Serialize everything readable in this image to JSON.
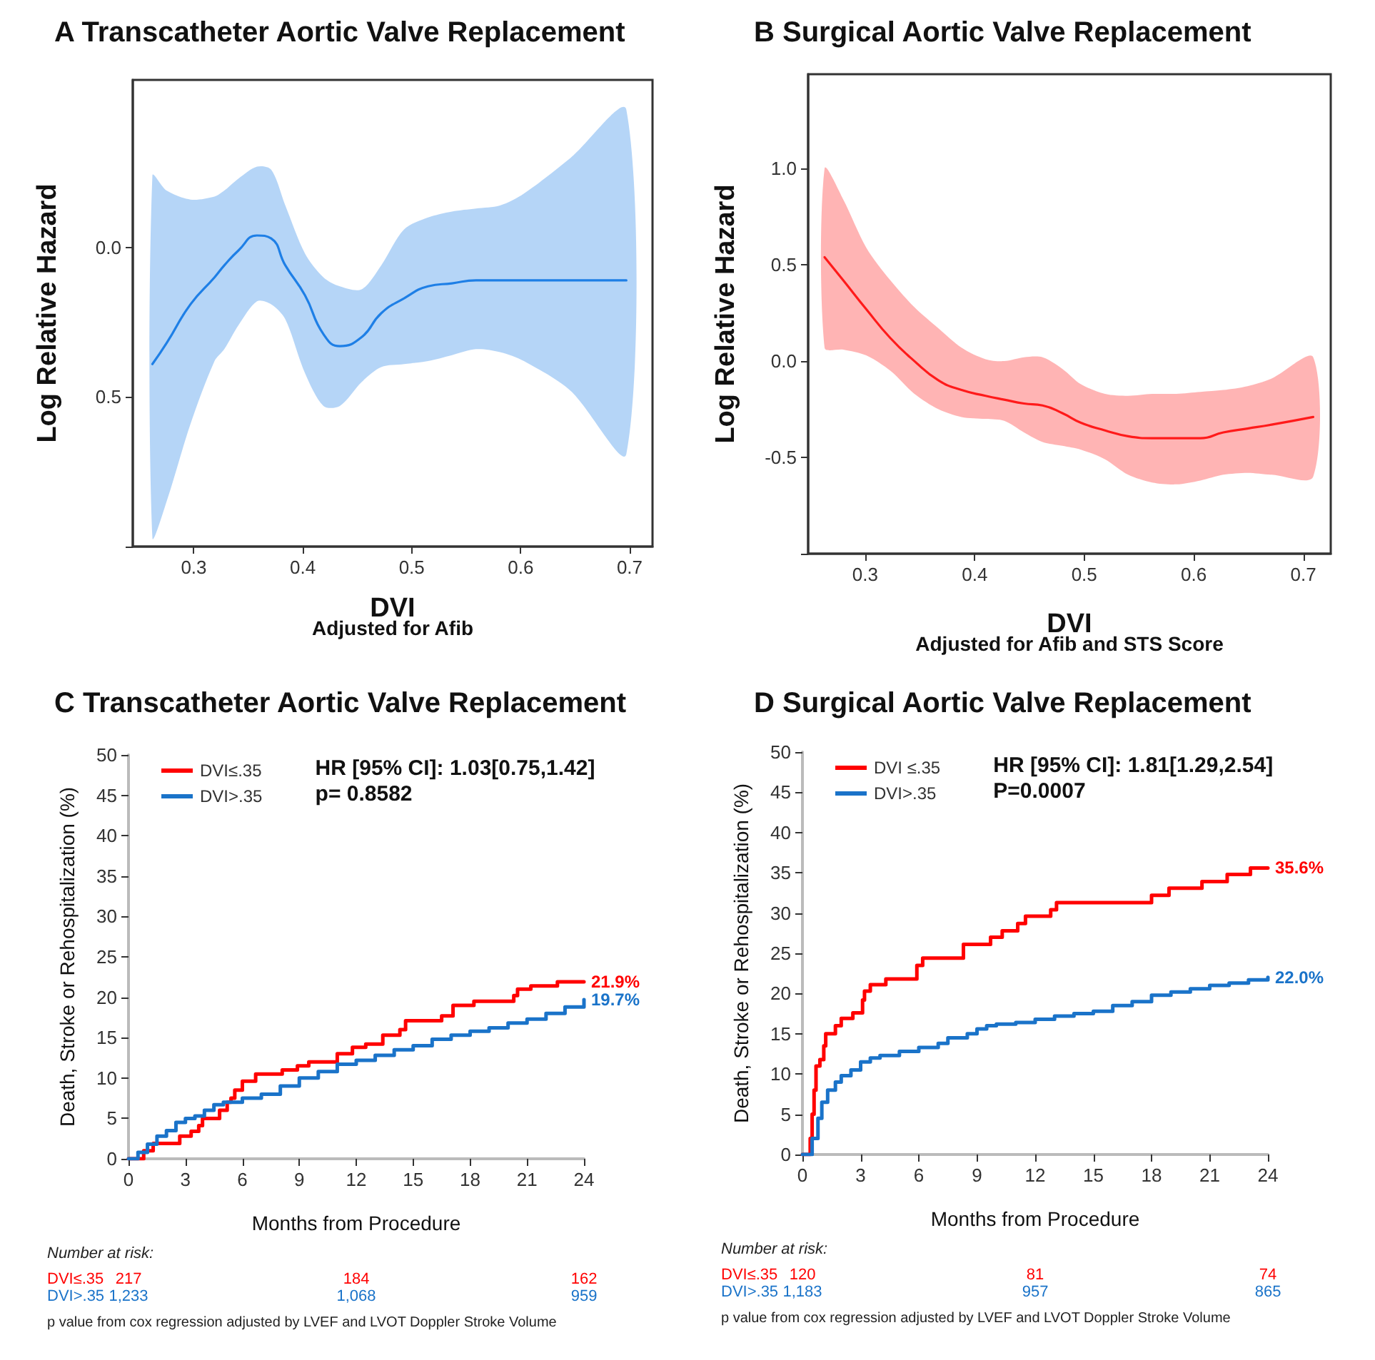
{
  "chart_data": [
    {
      "type": "line",
      "title": "A Transcatheter Aortic Valve Replacement",
      "xlabel": "DVI",
      "ylabel": "Log Relative Hazard",
      "annotations": [
        "Adjusted for Afib"
      ],
      "xlim": [
        0.244,
        0.721
      ],
      "xticks": [
        0.3,
        0.4,
        0.5,
        0.6,
        0.7
      ],
      "ylim": [
        1.0,
        -0.56
      ],
      "yticks": [
        {
          "value": 0,
          "label": "0.0"
        },
        0.5,
        {
          "value": 1,
          "label": null
        }
      ],
      "grid": false,
      "legend": false,
      "marker": "none",
      "line_style": "solid",
      "series": [
        {
          "color": "#1e7fe6",
          "x": [
            0.262,
            0.275,
            0.297,
            0.319,
            0.328,
            0.341,
            0.358,
            0.371,
            0.384,
            0.402,
            0.419,
            0.434,
            0.454,
            0.472,
            0.493,
            0.515,
            0.537,
            0.559,
            0.581,
            0.603,
            0.646,
            0.697
          ],
          "values": [
            0.39,
            0.32,
            0.19,
            0.1,
            0.06,
            0.01,
            -0.04,
            -0.03,
            0.06,
            0.16,
            0.29,
            0.33,
            0.3,
            0.22,
            0.17,
            0.13,
            0.12,
            0.11,
            0.11,
            0.11,
            0.11,
            0.11
          ],
          "lower": [
            -0.24,
            -0.19,
            -0.16,
            -0.17,
            -0.19,
            -0.23,
            -0.27,
            -0.26,
            -0.14,
            0.02,
            0.1,
            0.13,
            0.14,
            0.06,
            -0.06,
            -0.1,
            -0.12,
            -0.13,
            -0.14,
            -0.18,
            -0.3,
            -0.46
          ],
          "upper": [
            0.97,
            0.85,
            0.59,
            0.38,
            0.34,
            0.26,
            0.18,
            0.19,
            0.24,
            0.42,
            0.53,
            0.53,
            0.45,
            0.4,
            0.39,
            0.38,
            0.36,
            0.34,
            0.35,
            0.38,
            0.48,
            0.69
          ]
        }
      ]
    },
    {
      "type": "line",
      "title": "B Surgical Aortic Valve Replacement",
      "xlabel": "DVI",
      "ylabel": "Log Relative Hazard",
      "annotations": [
        "Adjusted for Afib and STS Score"
      ],
      "xlim": [
        0.248,
        0.725
      ],
      "xticks": [
        0.3,
        0.4,
        0.5,
        0.6,
        0.7
      ],
      "ylim": [
        -1.0,
        1.49
      ],
      "yticks": [
        {
          "value": -1,
          "label": null
        },
        -0.5,
        {
          "value": 0,
          "label": "0.0"
        },
        0.5,
        {
          "value": 1,
          "label": "1.0"
        }
      ],
      "grid": false,
      "legend": false,
      "marker": "none",
      "line_style": "solid",
      "series": [
        {
          "color": "#ff1a1a",
          "x": [
            0.263,
            0.28,
            0.301,
            0.323,
            0.345,
            0.367,
            0.388,
            0.41,
            0.427,
            0.445,
            0.462,
            0.48,
            0.497,
            0.519,
            0.54,
            0.562,
            0.584,
            0.606,
            0.627,
            0.649,
            0.671,
            0.709
          ],
          "values": [
            0.54,
            0.42,
            0.27,
            0.12,
            0.0,
            -0.1,
            -0.15,
            -0.18,
            -0.2,
            -0.22,
            -0.23,
            -0.27,
            -0.32,
            -0.36,
            -0.39,
            -0.4,
            -0.4,
            -0.4,
            -0.37,
            -0.35,
            -0.33,
            -0.29
          ],
          "lower": [
            0.07,
            0.06,
            0.03,
            -0.05,
            -0.17,
            -0.25,
            -0.29,
            -0.3,
            -0.31,
            -0.37,
            -0.42,
            -0.44,
            -0.46,
            -0.51,
            -0.59,
            -0.63,
            -0.64,
            -0.62,
            -0.59,
            -0.58,
            -0.59,
            -0.6
          ],
          "upper": [
            1.0,
            0.84,
            0.59,
            0.42,
            0.28,
            0.17,
            0.07,
            0.01,
            0.0,
            0.02,
            0.02,
            -0.04,
            -0.12,
            -0.17,
            -0.18,
            -0.17,
            -0.17,
            -0.16,
            -0.15,
            -0.13,
            -0.09,
            0.02
          ]
        }
      ]
    },
    {
      "type": "step",
      "title": "C Transcatheter Aortic Valve Replacement",
      "xlabel": "Months from Procedure",
      "ylabel": "Death, Stroke or Rehospitalization (%)",
      "xlim": [
        0,
        24
      ],
      "xticks": [
        0,
        3,
        6,
        9,
        12,
        15,
        18,
        21,
        24
      ],
      "ylim": [
        0,
        50
      ],
      "yticks": [
        0,
        5,
        10,
        15,
        20,
        25,
        30,
        35,
        40,
        45,
        50
      ],
      "grid": false,
      "legend": "top left",
      "marker": "none",
      "line_style": "solid",
      "annotations": [
        "HR [95% CI]: 1.03[0.75,1.42]",
        "p= 0.8582",
        "Number at risk:",
        "DVI≤.35",
        "217",
        "184",
        "162",
        "DVI>.35",
        "1,233",
        "1,068",
        "959",
        "p value from cox regression adjusted by LVEF and LVOT Doppler Stroke Volume"
      ],
      "series": [
        {
          "name": "DVI≤.35",
          "color": "#ff0000",
          "x": [
            0,
            0.3,
            0.8,
            1.3,
            2.7,
            3.3,
            3.7,
            3.9,
            4.8,
            5.2,
            5.4,
            5.6,
            6.0,
            6.7,
            8.1,
            8.9,
            9.5,
            11.0,
            11.8,
            12.5,
            13.4,
            14.3,
            14.6,
            16.5,
            17.1,
            18.2,
            20.3,
            20.5,
            21.2,
            22.6,
            24
          ],
          "values": [
            0,
            0,
            1,
            1.9,
            2.8,
            3.4,
            4.1,
            5,
            6,
            7,
            7.5,
            8.5,
            9.6,
            10.5,
            11,
            11.5,
            12,
            13,
            13.8,
            14.2,
            15.3,
            16,
            17.1,
            17.7,
            19,
            19.5,
            20.2,
            21,
            21.4,
            21.9,
            21.9
          ],
          "value_labels": [
            null,
            null,
            null,
            null,
            null,
            null,
            null,
            null,
            null,
            null,
            null,
            null,
            null,
            null,
            null,
            null,
            null,
            null,
            null,
            null,
            null,
            null,
            null,
            null,
            null,
            null,
            null,
            null,
            null,
            null,
            "21.9%"
          ]
        },
        {
          "name": "DVI>.35",
          "color": "#1a73c9",
          "x": [
            0,
            0.5,
            1,
            1.5,
            2,
            2.5,
            3,
            3.5,
            4,
            4.5,
            5,
            6,
            7,
            8,
            9,
            10,
            11,
            12,
            13,
            14,
            15,
            16,
            17,
            18,
            19,
            20,
            21,
            22,
            23,
            24
          ],
          "values": [
            0,
            0.8,
            1.8,
            2.8,
            3.5,
            4.5,
            5,
            5.3,
            6,
            6.7,
            7,
            7.5,
            8,
            9,
            10,
            10.8,
            11.7,
            12.2,
            12.8,
            13.5,
            14,
            14.8,
            15.3,
            15.8,
            16.2,
            16.8,
            17.3,
            18,
            18.8,
            19.7
          ],
          "value_labels": [
            null,
            null,
            null,
            null,
            null,
            null,
            null,
            null,
            null,
            null,
            null,
            null,
            null,
            null,
            null,
            null,
            null,
            null,
            null,
            null,
            null,
            null,
            null,
            null,
            null,
            null,
            null,
            null,
            null,
            "19.7%"
          ]
        }
      ]
    },
    {
      "type": "step",
      "title": "D Surgical Aortic Valve Replacement",
      "xlabel": "Months from Procedure",
      "ylabel": "Death, Stroke or Rehospitalization (%)",
      "xlim": [
        0,
        24
      ],
      "xticks": [
        0,
        3,
        6,
        9,
        12,
        15,
        18,
        21,
        24
      ],
      "ylim": [
        0,
        50
      ],
      "yticks": [
        0,
        5,
        10,
        15,
        20,
        25,
        30,
        35,
        40,
        45,
        50
      ],
      "grid": false,
      "legend": "top left",
      "marker": "none",
      "line_style": "solid",
      "annotations": [
        "HR [95% CI]: 1.81[1.29,2.54]",
        "P=0.0007",
        "Number at risk:",
        "DVI≤.35",
        "120",
        "81",
        "74",
        "DVI>.35",
        "1,183",
        "957",
        "865",
        "p value from cox regression adjusted by LVEF and LVOT Doppler Stroke Volume"
      ],
      "series": [
        {
          "name": "DVI ≤.35",
          "color": "#ff0000",
          "x": [
            0,
            0.3,
            0.4,
            0.5,
            0.6,
            0.7,
            0.9,
            1.1,
            1.2,
            1.7,
            2.0,
            2.6,
            3.1,
            3.2,
            3.5,
            4.3,
            5.9,
            6.2,
            8.3,
            9.7,
            10.3,
            11.1,
            11.5,
            12.8,
            13.1,
            18.0,
            18.9,
            20.6,
            21.9,
            23.1,
            24
          ],
          "values": [
            0,
            0,
            2,
            5,
            8,
            11,
            11.8,
            13.5,
            15,
            16,
            16.9,
            17.6,
            19.2,
            20.3,
            21.1,
            21.8,
            23.5,
            24.4,
            26.1,
            27,
            27.8,
            28.7,
            29.6,
            30.4,
            31.3,
            32.2,
            33.1,
            33.9,
            34.8,
            35.6,
            35.6
          ],
          "value_labels": [
            null,
            null,
            null,
            null,
            null,
            null,
            null,
            null,
            null,
            null,
            null,
            null,
            null,
            null,
            null,
            null,
            null,
            null,
            null,
            null,
            null,
            null,
            null,
            null,
            null,
            null,
            null,
            null,
            null,
            null,
            "35.6%"
          ]
        },
        {
          "name": "DVI>.35",
          "color": "#1a73c9",
          "x": [
            0,
            0.3,
            0.5,
            0.8,
            1,
            1.3,
            1.7,
            2,
            2.5,
            3,
            3.5,
            4,
            5,
            6,
            7,
            7.5,
            8.5,
            9,
            9.5,
            10,
            11,
            12,
            13,
            14,
            15,
            16,
            17,
            18,
            19,
            20,
            21,
            22,
            23,
            24
          ],
          "values": [
            0,
            0,
            2,
            4.5,
            6.5,
            8,
            9,
            9.8,
            10.5,
            11.5,
            12,
            12.3,
            12.8,
            13.3,
            13.8,
            14.5,
            15,
            15.6,
            16,
            16.2,
            16.4,
            16.8,
            17.2,
            17.5,
            17.8,
            18.5,
            19,
            19.8,
            20.2,
            20.6,
            21,
            21.3,
            21.7,
            22.0
          ],
          "value_labels": [
            null,
            null,
            null,
            null,
            null,
            null,
            null,
            null,
            null,
            null,
            null,
            null,
            null,
            null,
            null,
            null,
            null,
            null,
            null,
            null,
            null,
            null,
            null,
            null,
            null,
            null,
            null,
            null,
            null,
            null,
            null,
            null,
            null,
            "22.0%"
          ]
        }
      ]
    }
  ]
}
